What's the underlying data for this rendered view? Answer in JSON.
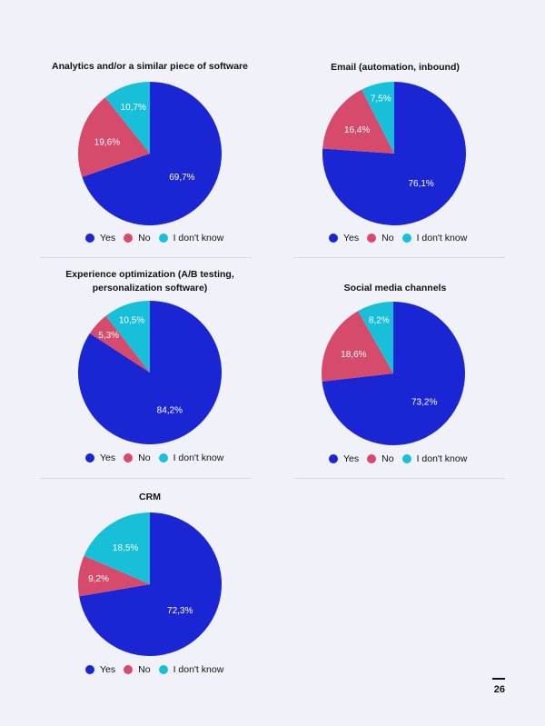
{
  "legend": [
    "Yes",
    "No",
    "I don't know"
  ],
  "colors": {
    "yes": "#1a26d4",
    "no": "#d64a6b",
    "dont_know": "#17c0d8",
    "background": "#f1f2f9"
  },
  "chart_data": [
    {
      "type": "pie",
      "title": "Analytics and/or a similar piece of software",
      "categories": [
        "Yes",
        "No",
        "I don't know"
      ],
      "values": [
        69.7,
        19.6,
        10.7
      ],
      "labels": [
        "69,7%",
        "19,6%",
        "10,7%"
      ]
    },
    {
      "type": "pie",
      "title": "Email (automation, inbound)",
      "categories": [
        "Yes",
        "No",
        "I don't know"
      ],
      "values": [
        76.1,
        16.4,
        7.5
      ],
      "labels": [
        "76,1%",
        "16,4%",
        "7,5%"
      ]
    },
    {
      "type": "pie",
      "title": "Experience optimization (A/B testing, personalization software)",
      "categories": [
        "Yes",
        "No",
        "I don't know"
      ],
      "values": [
        84.2,
        5.3,
        10.5
      ],
      "labels": [
        "84,2%",
        "5,3%",
        "10,5%"
      ]
    },
    {
      "type": "pie",
      "title": "Social media channels",
      "categories": [
        "Yes",
        "No",
        "I don't know"
      ],
      "values": [
        73.2,
        18.6,
        8.2
      ],
      "labels": [
        "73,2%",
        "18,6%",
        "8,2%"
      ]
    },
    {
      "type": "pie",
      "title": "CRM",
      "categories": [
        "Yes",
        "No",
        "I don't know"
      ],
      "values": [
        72.3,
        9.2,
        18.5
      ],
      "labels": [
        "72,3%",
        "9,2%",
        "18,5%"
      ]
    }
  ],
  "page_number": "26"
}
